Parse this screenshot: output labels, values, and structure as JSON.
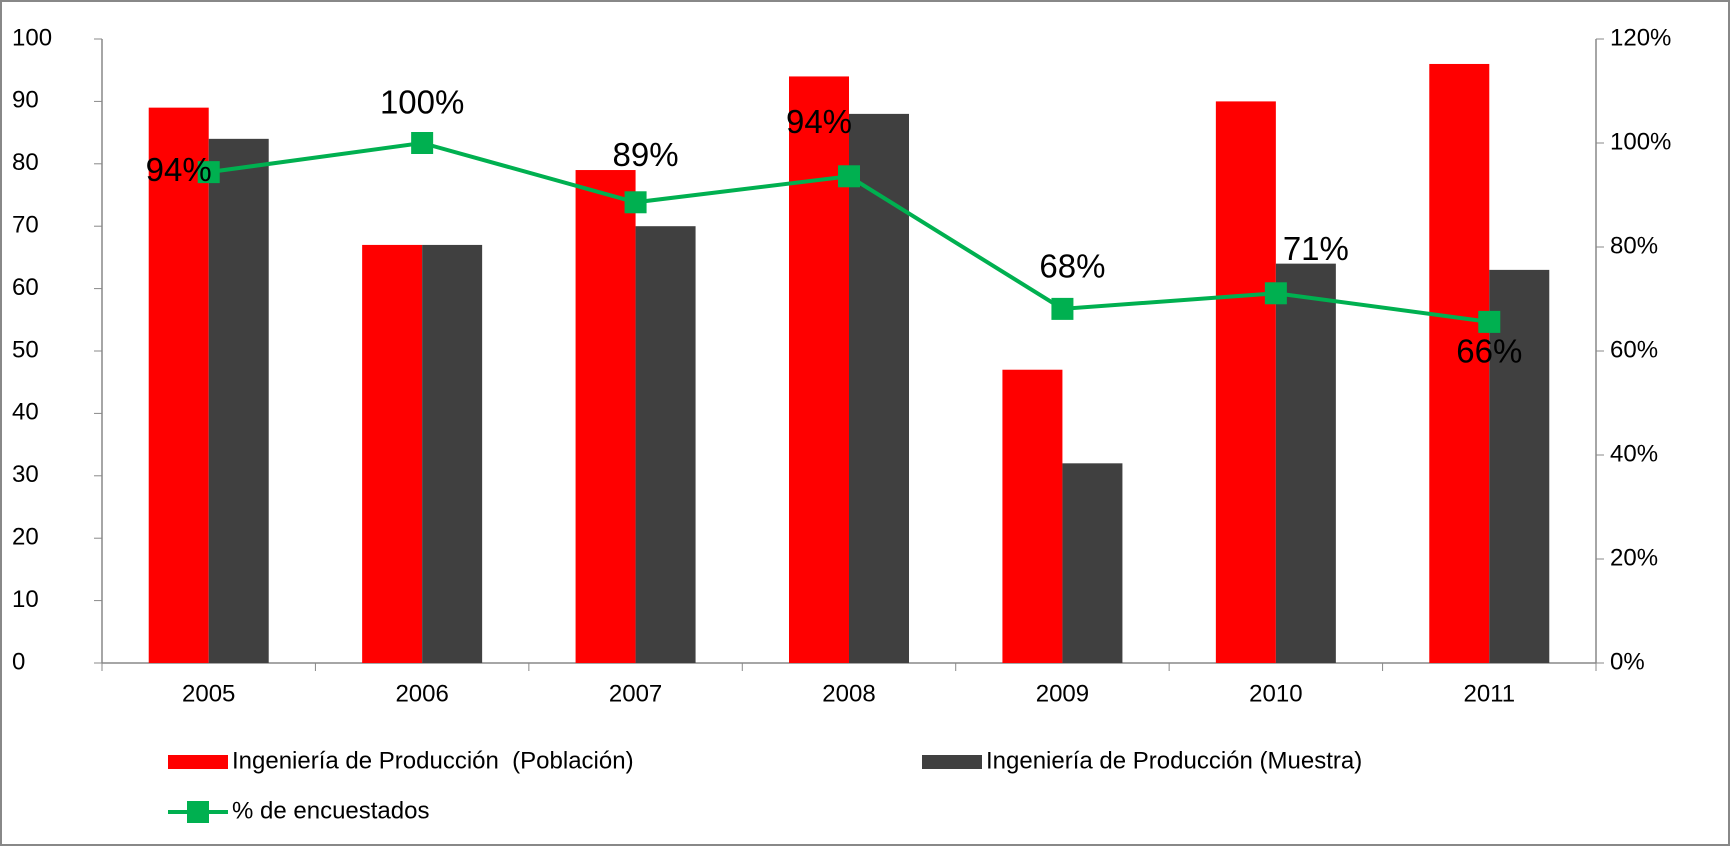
{
  "chart_data": {
    "type": "bar",
    "categories": [
      "2005",
      "2006",
      "2007",
      "2008",
      "2009",
      "2010",
      "2011"
    ],
    "series": [
      {
        "name": "Ingeniería de Producción  (Población)",
        "color": "#ff0000",
        "values": [
          89,
          67,
          79,
          94,
          47,
          90,
          96
        ]
      },
      {
        "name": "Ingeniería de Producción (Muestra)",
        "color": "#404040",
        "values": [
          84,
          67,
          70,
          88,
          32,
          64,
          63
        ]
      },
      {
        "name": "% de encuestados",
        "type": "line",
        "axis": "y2",
        "color": "#00b050",
        "values": [
          94.4,
          100,
          88.6,
          93.6,
          68.1,
          71.1,
          65.6
        ],
        "value_labels": [
          "94%",
          "100%",
          "89%",
          "94%",
          "68%",
          "71%",
          "66%"
        ]
      }
    ],
    "ylim": [
      0,
      100
    ],
    "yticks": [
      0,
      10,
      20,
      30,
      40,
      50,
      60,
      70,
      80,
      90,
      100
    ],
    "y2lim": [
      0,
      120
    ],
    "y2ticks": [
      {
        "value": 0,
        "label": "0%"
      },
      {
        "value": 20,
        "label": "20%"
      },
      {
        "value": 40,
        "label": "40%"
      },
      {
        "value": 60,
        "label": "60%"
      },
      {
        "value": 80,
        "label": "80%"
      },
      {
        "value": 100,
        "label": "100%"
      },
      {
        "value": 120,
        "label": "120%"
      }
    ],
    "legend": "bottom"
  }
}
